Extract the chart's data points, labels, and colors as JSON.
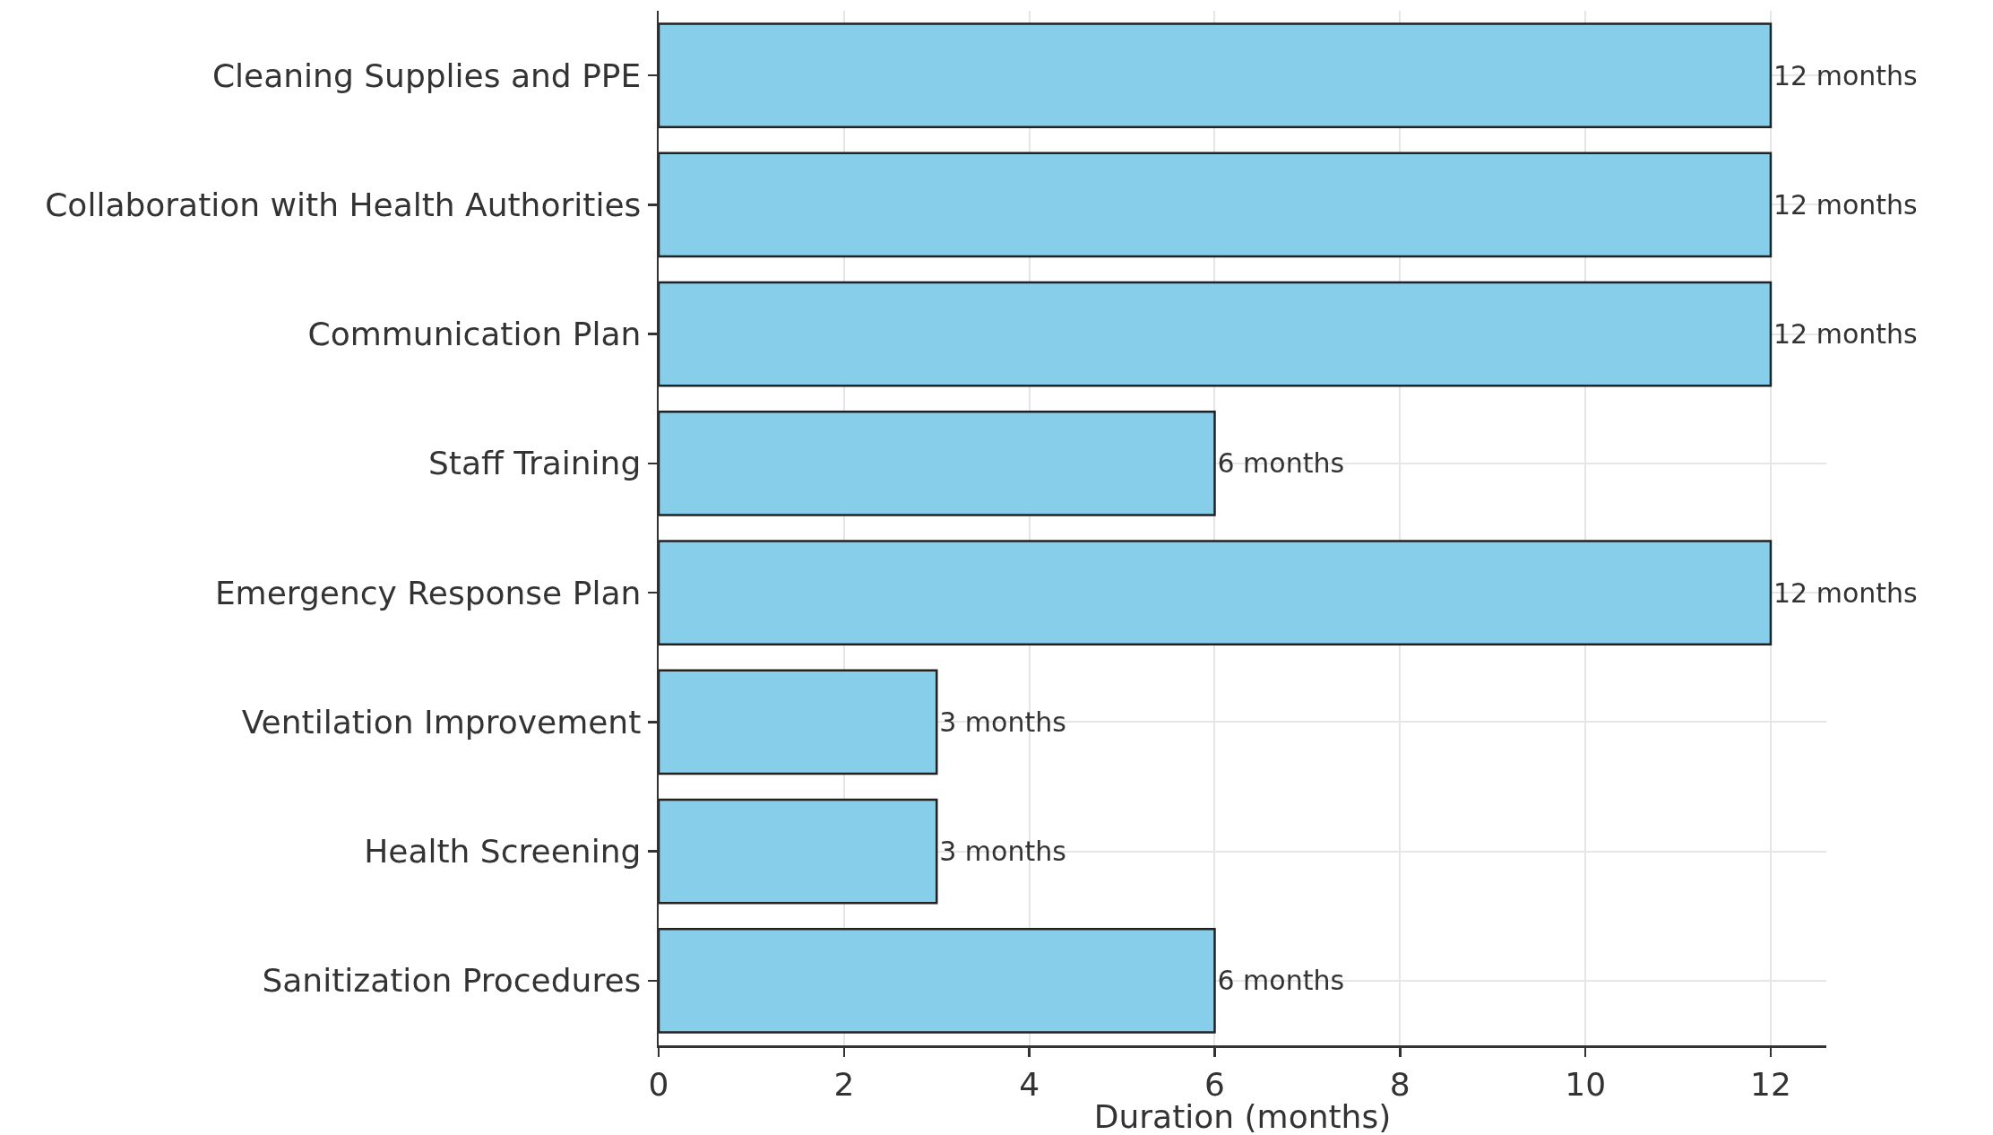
{
  "chart_data": {
    "type": "bar",
    "orientation": "horizontal",
    "xlabel": "Duration (months)",
    "categories": [
      "Cleaning Supplies and PPE",
      "Collaboration with Health Authorities",
      "Communication Plan",
      "Staff Training",
      "Emergency Response Plan",
      "Ventilation Improvement",
      "Health Screening",
      "Sanitization Procedures"
    ],
    "values": [
      12,
      12,
      12,
      6,
      12,
      3,
      3,
      6
    ],
    "value_labels": [
      "12 months",
      "12 months",
      "12 months",
      "6 months",
      "12 months",
      "3 months",
      "3 months",
      "6 months"
    ],
    "color": "#87ceeb",
    "xlim": [
      0,
      12.6
    ],
    "xticks": [
      0,
      2,
      4,
      6,
      8,
      10,
      12
    ],
    "grid": true
  }
}
